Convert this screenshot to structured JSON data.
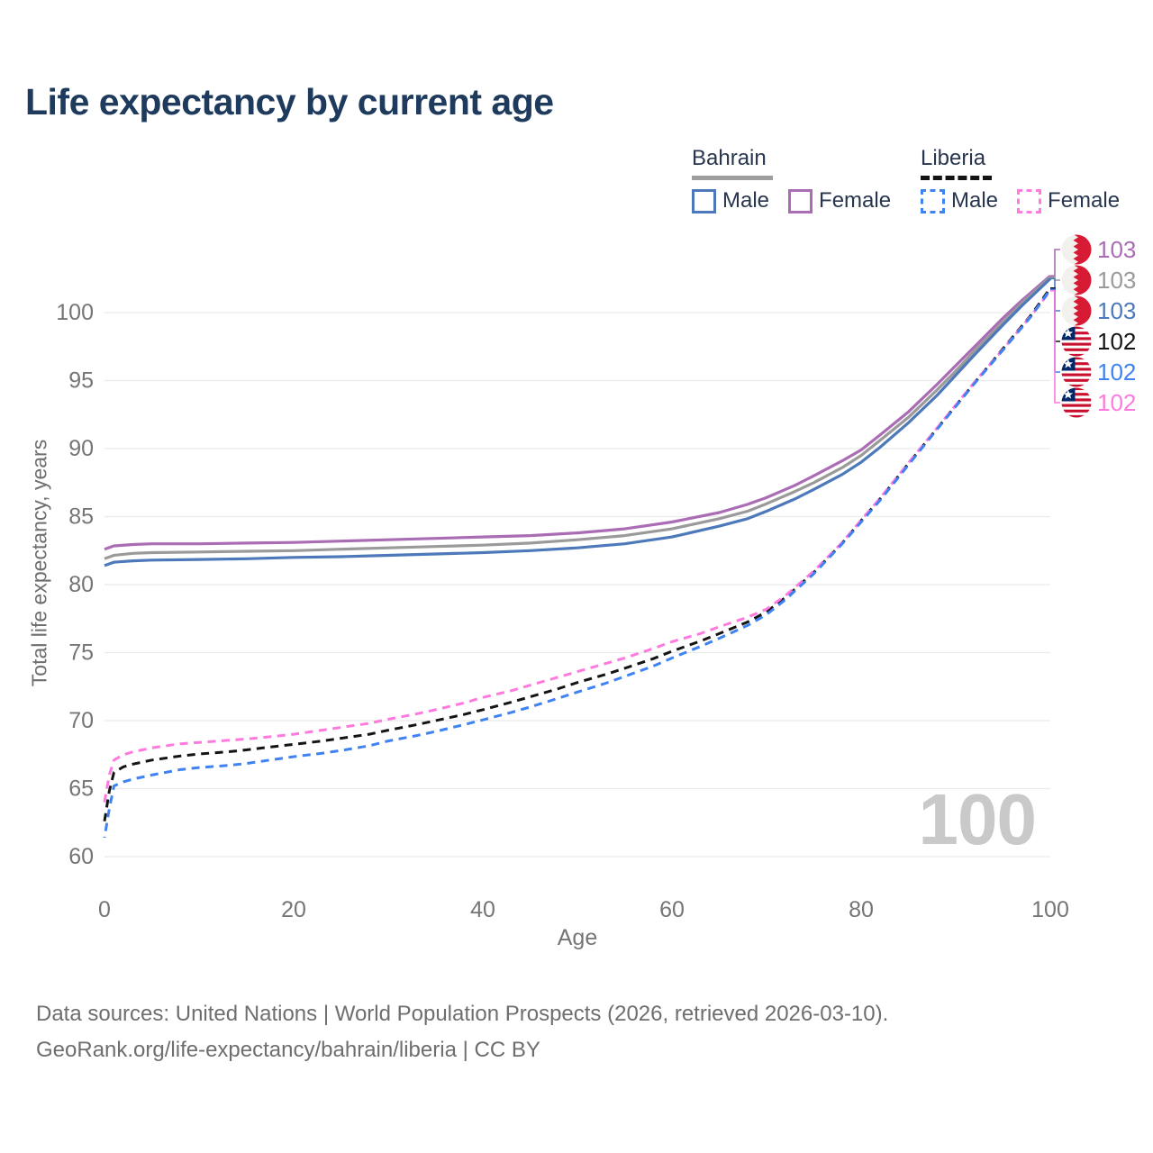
{
  "title": "Life expectancy by current age",
  "legend": {
    "groups": [
      {
        "label": "Bahrain",
        "line_style": "solid",
        "items": [
          {
            "label": "Male"
          },
          {
            "label": "Female"
          }
        ]
      },
      {
        "label": "Liberia",
        "line_style": "dashed",
        "items": [
          {
            "label": "Male"
          },
          {
            "label": "Female"
          }
        ]
      }
    ]
  },
  "chart_data": {
    "type": "line",
    "title": "Life expectancy by current age",
    "xlabel": "Age",
    "ylabel": "Total life expectancy, years",
    "xlim": [
      0,
      100
    ],
    "ylim": [
      60,
      100
    ],
    "x_ticks": [
      0,
      20,
      40,
      60,
      80,
      100
    ],
    "y_ticks": [
      60,
      65,
      70,
      75,
      80,
      85,
      90,
      95,
      100
    ],
    "grid": "horizontal",
    "gridline_color": "#ebebeb",
    "tick_color": "#757575",
    "watermark": "100",
    "series": [
      {
        "id": "bahrain_female",
        "name": "Bahrain Female",
        "color": "#aa6cb4",
        "dash": false,
        "points": [
          [
            0,
            82.6
          ],
          [
            1,
            82.85
          ],
          [
            3,
            82.95
          ],
          [
            5,
            83.0
          ],
          [
            10,
            83.0
          ],
          [
            15,
            83.05
          ],
          [
            20,
            83.1
          ],
          [
            25,
            83.2
          ],
          [
            30,
            83.3
          ],
          [
            35,
            83.4
          ],
          [
            40,
            83.5
          ],
          [
            45,
            83.6
          ],
          [
            50,
            83.8
          ],
          [
            55,
            84.1
          ],
          [
            60,
            84.6
          ],
          [
            65,
            85.3
          ],
          [
            68,
            85.9
          ],
          [
            70,
            86.4
          ],
          [
            73,
            87.3
          ],
          [
            75,
            88.0
          ],
          [
            78,
            89.1
          ],
          [
            80,
            89.9
          ],
          [
            82,
            91.0
          ],
          [
            85,
            92.7
          ],
          [
            88,
            94.7
          ],
          [
            90,
            96.1
          ],
          [
            92,
            97.5
          ],
          [
            95,
            99.6
          ],
          [
            97,
            100.9
          ],
          [
            100,
            102.7
          ]
        ]
      },
      {
        "id": "bahrain_total",
        "name": "Bahrain",
        "color": "#9a9a9a",
        "dash": false,
        "points": [
          [
            0,
            81.9
          ],
          [
            1,
            82.15
          ],
          [
            3,
            82.3
          ],
          [
            5,
            82.35
          ],
          [
            10,
            82.4
          ],
          [
            15,
            82.45
          ],
          [
            20,
            82.5
          ],
          [
            25,
            82.6
          ],
          [
            30,
            82.7
          ],
          [
            35,
            82.8
          ],
          [
            40,
            82.9
          ],
          [
            45,
            83.05
          ],
          [
            50,
            83.3
          ],
          [
            55,
            83.6
          ],
          [
            60,
            84.1
          ],
          [
            65,
            84.85
          ],
          [
            68,
            85.4
          ],
          [
            70,
            85.95
          ],
          [
            73,
            86.85
          ],
          [
            75,
            87.5
          ],
          [
            78,
            88.6
          ],
          [
            80,
            89.5
          ],
          [
            82,
            90.6
          ],
          [
            85,
            92.3
          ],
          [
            88,
            94.3
          ],
          [
            90,
            95.7
          ],
          [
            92,
            97.2
          ],
          [
            95,
            99.3
          ],
          [
            97,
            100.7
          ],
          [
            100,
            102.6
          ]
        ]
      },
      {
        "id": "bahrain_male",
        "name": "Bahrain Male",
        "color": "#4d79ba",
        "dash": false,
        "points": [
          [
            0,
            81.4
          ],
          [
            1,
            81.65
          ],
          [
            3,
            81.75
          ],
          [
            5,
            81.8
          ],
          [
            10,
            81.85
          ],
          [
            15,
            81.9
          ],
          [
            20,
            82.0
          ],
          [
            25,
            82.05
          ],
          [
            30,
            82.15
          ],
          [
            35,
            82.25
          ],
          [
            40,
            82.35
          ],
          [
            45,
            82.5
          ],
          [
            50,
            82.7
          ],
          [
            55,
            83.0
          ],
          [
            60,
            83.5
          ],
          [
            65,
            84.3
          ],
          [
            68,
            84.85
          ],
          [
            70,
            85.4
          ],
          [
            73,
            86.3
          ],
          [
            75,
            87.0
          ],
          [
            78,
            88.1
          ],
          [
            80,
            89.0
          ],
          [
            82,
            90.1
          ],
          [
            85,
            91.9
          ],
          [
            88,
            93.9
          ],
          [
            90,
            95.4
          ],
          [
            92,
            96.9
          ],
          [
            95,
            99.1
          ],
          [
            97,
            100.5
          ],
          [
            100,
            102.5
          ]
        ]
      },
      {
        "id": "liberia_total",
        "name": "Liberia",
        "color": "#141414",
        "dash": true,
        "points": [
          [
            0,
            62.6
          ],
          [
            0.5,
            64.8
          ],
          [
            1,
            66.2
          ],
          [
            2,
            66.6
          ],
          [
            3,
            66.8
          ],
          [
            5,
            67.1
          ],
          [
            8,
            67.4
          ],
          [
            10,
            67.55
          ],
          [
            13,
            67.7
          ],
          [
            15,
            67.85
          ],
          [
            18,
            68.1
          ],
          [
            20,
            68.25
          ],
          [
            23,
            68.5
          ],
          [
            25,
            68.7
          ],
          [
            28,
            69.0
          ],
          [
            30,
            69.3
          ],
          [
            33,
            69.7
          ],
          [
            35,
            70.0
          ],
          [
            38,
            70.45
          ],
          [
            40,
            70.8
          ],
          [
            43,
            71.35
          ],
          [
            45,
            71.75
          ],
          [
            48,
            72.35
          ],
          [
            50,
            72.8
          ],
          [
            53,
            73.4
          ],
          [
            55,
            73.85
          ],
          [
            58,
            74.55
          ],
          [
            60,
            75.1
          ],
          [
            63,
            75.85
          ],
          [
            65,
            76.4
          ],
          [
            68,
            77.25
          ],
          [
            70,
            78.0
          ],
          [
            72,
            79.05
          ],
          [
            75,
            80.9
          ],
          [
            78,
            83.05
          ],
          [
            80,
            84.7
          ],
          [
            82,
            86.3
          ],
          [
            85,
            88.9
          ],
          [
            88,
            91.45
          ],
          [
            90,
            93.15
          ],
          [
            92,
            94.85
          ],
          [
            95,
            97.35
          ],
          [
            98,
            99.85
          ],
          [
            100,
            101.8
          ]
        ]
      },
      {
        "id": "liberia_female",
        "name": "Liberia Female",
        "color": "#ff7ade",
        "dash": true,
        "points": [
          [
            0,
            64.0
          ],
          [
            0.5,
            66.0
          ],
          [
            1,
            67.1
          ],
          [
            2,
            67.5
          ],
          [
            3,
            67.7
          ],
          [
            5,
            68.0
          ],
          [
            8,
            68.3
          ],
          [
            10,
            68.4
          ],
          [
            13,
            68.55
          ],
          [
            15,
            68.65
          ],
          [
            18,
            68.85
          ],
          [
            20,
            69.0
          ],
          [
            23,
            69.3
          ],
          [
            25,
            69.5
          ],
          [
            28,
            69.8
          ],
          [
            30,
            70.1
          ],
          [
            33,
            70.5
          ],
          [
            35,
            70.8
          ],
          [
            38,
            71.3
          ],
          [
            40,
            71.7
          ],
          [
            43,
            72.2
          ],
          [
            45,
            72.6
          ],
          [
            48,
            73.2
          ],
          [
            50,
            73.6
          ],
          [
            53,
            74.2
          ],
          [
            55,
            74.6
          ],
          [
            58,
            75.3
          ],
          [
            60,
            75.8
          ],
          [
            63,
            76.4
          ],
          [
            65,
            76.9
          ],
          [
            68,
            77.6
          ],
          [
            70,
            78.2
          ],
          [
            72,
            79.2
          ],
          [
            75,
            81.0
          ],
          [
            78,
            83.1
          ],
          [
            80,
            84.75
          ],
          [
            82,
            86.35
          ],
          [
            85,
            88.95
          ],
          [
            88,
            91.5
          ],
          [
            90,
            93.2
          ],
          [
            92,
            94.9
          ],
          [
            95,
            97.3
          ],
          [
            98,
            99.8
          ],
          [
            100,
            101.6
          ]
        ]
      },
      {
        "id": "liberia_male",
        "name": "Liberia Male",
        "color": "#3f82f2",
        "dash": true,
        "points": [
          [
            0,
            61.4
          ],
          [
            0.5,
            63.5
          ],
          [
            1,
            65.2
          ],
          [
            2,
            65.5
          ],
          [
            3,
            65.7
          ],
          [
            5,
            66.0
          ],
          [
            8,
            66.4
          ],
          [
            10,
            66.55
          ],
          [
            13,
            66.7
          ],
          [
            15,
            66.85
          ],
          [
            18,
            67.15
          ],
          [
            20,
            67.35
          ],
          [
            23,
            67.6
          ],
          [
            25,
            67.8
          ],
          [
            28,
            68.15
          ],
          [
            30,
            68.5
          ],
          [
            33,
            68.9
          ],
          [
            35,
            69.2
          ],
          [
            38,
            69.7
          ],
          [
            40,
            70.05
          ],
          [
            43,
            70.6
          ],
          [
            45,
            71.0
          ],
          [
            48,
            71.65
          ],
          [
            50,
            72.1
          ],
          [
            53,
            72.75
          ],
          [
            55,
            73.25
          ],
          [
            58,
            74.0
          ],
          [
            60,
            74.6
          ],
          [
            63,
            75.45
          ],
          [
            65,
            76.05
          ],
          [
            68,
            77.0
          ],
          [
            70,
            77.8
          ],
          [
            72,
            78.9
          ],
          [
            75,
            80.8
          ],
          [
            78,
            83.0
          ],
          [
            80,
            84.6
          ],
          [
            82,
            86.2
          ],
          [
            85,
            88.8
          ],
          [
            88,
            91.4
          ],
          [
            90,
            93.1
          ],
          [
            92,
            94.8
          ],
          [
            95,
            97.25
          ],
          [
            98,
            99.75
          ],
          [
            100,
            101.7
          ]
        ]
      }
    ],
    "end_labels": [
      {
        "value": "103",
        "flag": "bahrain",
        "series": "bahrain_female"
      },
      {
        "value": "103",
        "flag": "bahrain",
        "series": "bahrain_total"
      },
      {
        "value": "103",
        "flag": "bahrain",
        "series": "bahrain_male"
      },
      {
        "value": "102",
        "flag": "liberia",
        "series": "liberia_total"
      },
      {
        "value": "102",
        "flag": "liberia",
        "series": "liberia_male"
      },
      {
        "value": "102",
        "flag": "liberia",
        "series": "liberia_female"
      }
    ]
  },
  "footer": {
    "line1": "Data sources: United Nations | World Population Prospects (2026, retrieved 2026-03-10).",
    "line2": "GeoRank.org/life-expectancy/bahrain/liberia | CC BY"
  }
}
